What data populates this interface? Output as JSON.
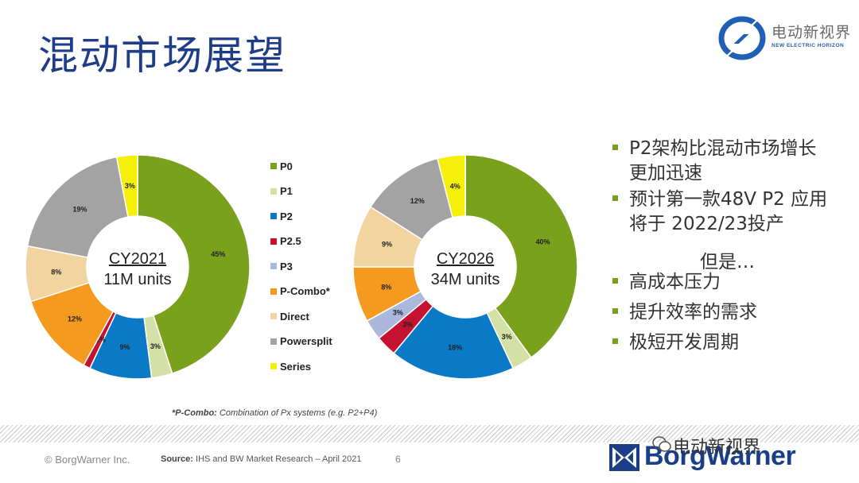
{
  "slide": {
    "title": "混动市场展望",
    "logo_cn": "电动新视界",
    "logo_en": "NEW ELECTRIC HORIZON"
  },
  "chart_data": [
    {
      "type": "pie",
      "center_label": [
        "CY2021",
        "11M units"
      ],
      "categories": [
        "P0",
        "P1",
        "P2",
        "P2.5",
        "P3",
        "P-Combo*",
        "Direct",
        "Powersplit",
        "Series"
      ],
      "values": [
        45,
        3,
        9,
        1,
        0,
        12,
        8,
        19,
        3
      ],
      "labels": [
        "45%",
        "3%",
        "9%",
        "1%",
        "",
        "12%",
        "8%",
        "19%",
        "3%"
      ]
    },
    {
      "type": "pie",
      "center_label": [
        "CY2026",
        "34M units"
      ],
      "categories": [
        "P0",
        "P1",
        "P2",
        "P2.5",
        "P3",
        "P-Combo*",
        "Direct",
        "Powersplit",
        "Series"
      ],
      "values": [
        40,
        3,
        18,
        3,
        3,
        8,
        9,
        12,
        4
      ],
      "labels": [
        "40%",
        "3%",
        "18%",
        "3%",
        "3%",
        "8%",
        "9%",
        "12%",
        "4%"
      ]
    }
  ],
  "legend": {
    "items": [
      {
        "label": "P0",
        "color": "#7aa11b"
      },
      {
        "label": "P1",
        "color": "#d4e0a6"
      },
      {
        "label": "P2",
        "color": "#0a79c6"
      },
      {
        "label": "P2.5",
        "color": "#c41230"
      },
      {
        "label": "P3",
        "color": "#a9b8dc"
      },
      {
        "label": "P-Combo*",
        "color": "#f59a1f"
      },
      {
        "label": "Direct",
        "color": "#f2d4a0"
      },
      {
        "label": "Powersplit",
        "color": "#a3a3a3"
      },
      {
        "label": "Series",
        "color": "#f5ef0a"
      }
    ]
  },
  "bullets": {
    "items": [
      {
        "lines": [
          "P2架构比混动市场增长",
          "更加迅速"
        ]
      },
      {
        "lines": [
          "预计第一款48V P2 应用",
          "将于 2022/23投产"
        ]
      },
      {
        "lines": [
          "高成本压力"
        ]
      },
      {
        "lines": [
          "提升效率的需求"
        ]
      },
      {
        "lines": [
          "极短开发周期"
        ]
      }
    ],
    "plain_line": "但是…"
  },
  "footnote": {
    "label": "*P-Combo:",
    "text": " Combination of Px systems (e.g. P2+P4)"
  },
  "footer": {
    "copyright": "©  BorgWarner Inc.",
    "source_label": "Source:",
    "source_text": " IHS and BW Market Research – April 2021",
    "page_number": "6",
    "brand": "BorgWarner",
    "watermark": "电动新视界"
  }
}
